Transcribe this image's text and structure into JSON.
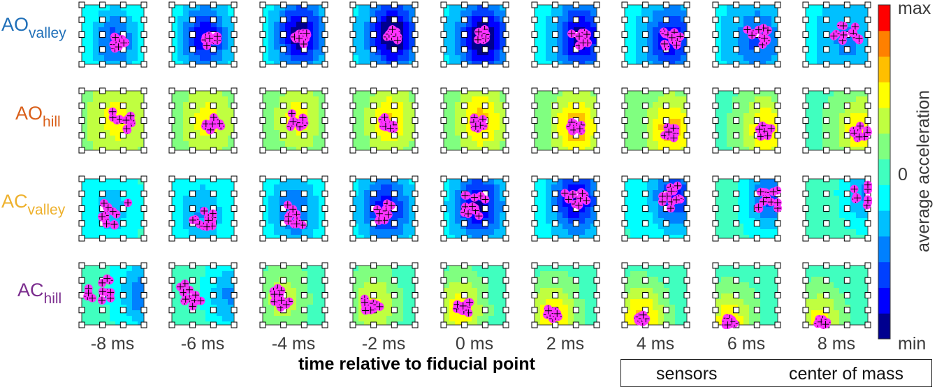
{
  "chart_data": {
    "type": "heatmap",
    "row_labels": [
      {
        "main": "AO",
        "sub": "valley",
        "color": "#1f6fb8"
      },
      {
        "main": "AO",
        "sub": "hill",
        "color": "#d95f1a"
      },
      {
        "main": "AC",
        "sub": "valley",
        "color": "#eeb12d"
      },
      {
        "main": "AC",
        "sub": "hill",
        "color": "#7b2d8e"
      }
    ],
    "column_labels": [
      "-8 ms",
      "-6 ms",
      "-4 ms",
      "-2 ms",
      "0 ms",
      "2 ms",
      "4 ms",
      "6 ms",
      "8 ms"
    ],
    "xlabel": "time relative to fiducial point",
    "colorbar": {
      "label": "average acceleration",
      "ticks": [
        "max",
        "0",
        "min"
      ],
      "colormap": "jet",
      "levels": 13
    },
    "legend": {
      "position": "bottom-right",
      "items": [
        "sensors",
        "center of mass"
      ]
    },
    "colors": {
      "com_marker": "#ff33ff",
      "sensor_edge": "#000000",
      "contour_line": "#000000"
    },
    "sensor_grid": {
      "columns": 4,
      "rows": 5
    },
    "panels": [
      {
        "row": 0,
        "col": 0,
        "peak": [
          0.8,
          0.6
        ],
        "amp": -0.6,
        "base": -0.05,
        "com_center": [
          0.9,
          0.65
        ],
        "com_spread": 0.13
      },
      {
        "row": 0,
        "col": 1,
        "peak": [
          0.8,
          0.55
        ],
        "amp": -0.8,
        "base": -0.1,
        "com_center": [
          0.95,
          0.6
        ],
        "com_spread": 0.1
      },
      {
        "row": 0,
        "col": 2,
        "peak": [
          0.9,
          0.5
        ],
        "amp": -0.9,
        "base": -0.15,
        "com_center": [
          0.9,
          0.55
        ],
        "com_spread": 0.12
      },
      {
        "row": 0,
        "col": 3,
        "peak": [
          0.95,
          0.5
        ],
        "amp": -0.95,
        "base": -0.2,
        "com_center": [
          0.95,
          0.5
        ],
        "com_spread": 0.1
      },
      {
        "row": 0,
        "col": 4,
        "peak": [
          0.95,
          0.55
        ],
        "amp": -0.95,
        "base": -0.2,
        "com_center": [
          0.95,
          0.5
        ],
        "com_spread": 0.1
      },
      {
        "row": 0,
        "col": 5,
        "peak": [
          1.1,
          0.55
        ],
        "amp": -0.85,
        "base": -0.18,
        "com_center": [
          1.1,
          0.55
        ],
        "com_spread": 0.15
      },
      {
        "row": 0,
        "col": 6,
        "peak": [
          1.1,
          0.6
        ],
        "amp": -0.7,
        "base": -0.2,
        "com_center": [
          1.1,
          0.6
        ],
        "com_spread": 0.17
      },
      {
        "row": 0,
        "col": 7,
        "peak": [
          1.0,
          0.6
        ],
        "amp": -0.4,
        "base": -0.22,
        "com_center": [
          1.0,
          0.55
        ],
        "com_spread": 0.2
      },
      {
        "row": 0,
        "col": 8,
        "peak": [
          1.0,
          0.6
        ],
        "amp": -0.25,
        "base": -0.22,
        "com_center": [
          1.0,
          0.55
        ],
        "com_spread": 0.22
      },
      {
        "row": 1,
        "col": 0,
        "peak": [
          0.85,
          0.5
        ],
        "amp": 0.3,
        "base": 0.2,
        "com_center": [
          0.95,
          0.5
        ],
        "com_spread": 0.17
      },
      {
        "row": 1,
        "col": 1,
        "peak": [
          0.85,
          0.5
        ],
        "amp": 0.35,
        "base": 0.15,
        "com_center": [
          1.0,
          0.55
        ],
        "com_spread": 0.14
      },
      {
        "row": 1,
        "col": 2,
        "peak": [
          0.85,
          0.45
        ],
        "amp": 0.4,
        "base": 0.1,
        "com_center": [
          0.85,
          0.5
        ],
        "com_spread": 0.12
      },
      {
        "row": 1,
        "col": 3,
        "peak": [
          0.9,
          0.5
        ],
        "amp": 0.5,
        "base": 0.1,
        "com_center": [
          0.85,
          0.55
        ],
        "com_spread": 0.11
      },
      {
        "row": 1,
        "col": 4,
        "peak": [
          0.9,
          0.5
        ],
        "amp": 0.55,
        "base": 0.1,
        "com_center": [
          0.85,
          0.55
        ],
        "com_spread": 0.1
      },
      {
        "row": 1,
        "col": 5,
        "peak": [
          1.0,
          0.6
        ],
        "amp": 0.6,
        "base": 0.1,
        "com_center": [
          1.0,
          0.62
        ],
        "com_spread": 0.1
      },
      {
        "row": 1,
        "col": 6,
        "peak": [
          1.1,
          0.65
        ],
        "amp": 0.6,
        "base": 0.08,
        "com_center": [
          1.1,
          0.7
        ],
        "com_spread": 0.1
      },
      {
        "row": 1,
        "col": 7,
        "peak": [
          1.2,
          0.65
        ],
        "amp": 0.55,
        "base": 0.05,
        "com_center": [
          1.15,
          0.68
        ],
        "com_spread": 0.14
      },
      {
        "row": 1,
        "col": 8,
        "peak": [
          1.3,
          0.65
        ],
        "amp": 0.5,
        "base": 0.05,
        "com_center": [
          1.3,
          0.68
        ],
        "com_spread": 0.15
      },
      {
        "row": 2,
        "col": 0,
        "peak": [
          0.7,
          0.5
        ],
        "amp": -0.3,
        "base": -0.05,
        "com_center": [
          0.8,
          0.6
        ],
        "com_spread": 0.22
      },
      {
        "row": 2,
        "col": 1,
        "peak": [
          0.7,
          0.6
        ],
        "amp": -0.35,
        "base": -0.08,
        "com_center": [
          0.75,
          0.65
        ],
        "com_spread": 0.18
      },
      {
        "row": 2,
        "col": 2,
        "peak": [
          0.75,
          0.55
        ],
        "amp": -0.5,
        "base": -0.1,
        "com_center": [
          0.75,
          0.6
        ],
        "com_spread": 0.18
      },
      {
        "row": 2,
        "col": 3,
        "peak": [
          0.8,
          0.5
        ],
        "amp": -0.7,
        "base": -0.15,
        "com_center": [
          0.7,
          0.55
        ],
        "com_spread": 0.16
      },
      {
        "row": 2,
        "col": 4,
        "peak": [
          0.85,
          0.45
        ],
        "amp": -0.8,
        "base": -0.15,
        "com_center": [
          0.75,
          0.45
        ],
        "com_spread": 0.18
      },
      {
        "row": 2,
        "col": 5,
        "peak": [
          1.0,
          0.35
        ],
        "amp": -0.8,
        "base": -0.15,
        "com_center": [
          1.0,
          0.4
        ],
        "com_spread": 0.18
      },
      {
        "row": 2,
        "col": 6,
        "peak": [
          1.2,
          0.3
        ],
        "amp": -0.7,
        "base": -0.08,
        "com_center": [
          1.1,
          0.3
        ],
        "com_spread": 0.2
      },
      {
        "row": 2,
        "col": 7,
        "peak": [
          1.3,
          0.3
        ],
        "amp": -0.6,
        "base": -0.02,
        "com_center": [
          1.3,
          0.35
        ],
        "com_spread": 0.18
      },
      {
        "row": 2,
        "col": 8,
        "peak": [
          1.45,
          0.25
        ],
        "amp": -0.45,
        "base": 0.0,
        "com_center": [
          1.45,
          0.3
        ],
        "com_spread": 0.2
      },
      {
        "row": 3,
        "col": 0,
        "peak": [
          1.5,
          0.5
        ],
        "amp": -0.5,
        "base": -0.05,
        "com_center": [
          0.4,
          0.4
        ],
        "com_spread": 0.2
      },
      {
        "row": 3,
        "col": 1,
        "peak": [
          1.4,
          0.5
        ],
        "amp": -0.45,
        "base": 0.0,
        "com_center": [
          0.5,
          0.5
        ],
        "com_spread": 0.2
      },
      {
        "row": 3,
        "col": 2,
        "peak": [
          0.5,
          0.55
        ],
        "amp": 0.35,
        "base": 0.0,
        "com_center": [
          0.5,
          0.55
        ],
        "com_spread": 0.18
      },
      {
        "row": 3,
        "col": 3,
        "peak": [
          0.5,
          0.65
        ],
        "amp": 0.45,
        "base": 0.0,
        "com_center": [
          0.45,
          0.7
        ],
        "com_spread": 0.14
      },
      {
        "row": 3,
        "col": 4,
        "peak": [
          0.4,
          0.75
        ],
        "amp": 0.55,
        "base": 0.0,
        "com_center": [
          0.45,
          0.72
        ],
        "com_spread": 0.12
      },
      {
        "row": 3,
        "col": 5,
        "peak": [
          0.45,
          0.85
        ],
        "amp": 0.6,
        "base": 0.0,
        "com_center": [
          0.45,
          0.82
        ],
        "com_spread": 0.1
      },
      {
        "row": 3,
        "col": 6,
        "peak": [
          0.4,
          0.9
        ],
        "amp": 0.65,
        "base": 0.0,
        "com_center": [
          0.4,
          0.9
        ],
        "com_spread": 0.08
      },
      {
        "row": 3,
        "col": 7,
        "peak": [
          0.35,
          0.95
        ],
        "amp": 0.55,
        "base": 0.0,
        "com_center": [
          0.35,
          0.94
        ],
        "com_spread": 0.08
      },
      {
        "row": 3,
        "col": 8,
        "peak": [
          0.35,
          0.95
        ],
        "amp": 0.5,
        "base": 0.0,
        "com_center": [
          0.4,
          0.94
        ],
        "com_spread": 0.08
      }
    ]
  }
}
